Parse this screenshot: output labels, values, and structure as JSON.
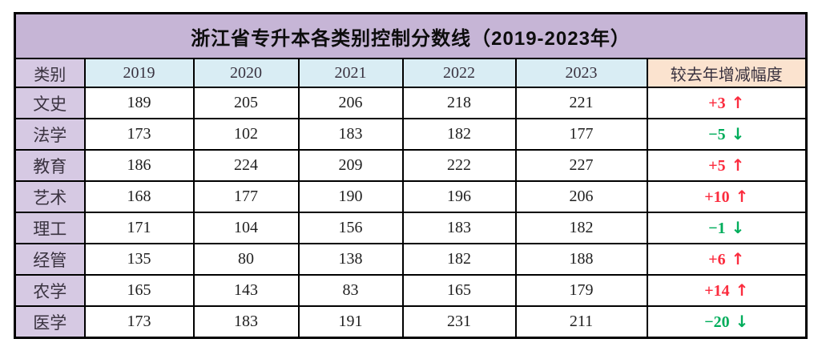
{
  "chart_data": {
    "type": "table",
    "title": "浙江省专升本各类别控制分数线（2019-2023年）",
    "columns": [
      "类别",
      "2019",
      "2020",
      "2021",
      "2022",
      "2023",
      "较去年增减幅度"
    ],
    "rows": [
      {
        "label": "文史",
        "scores": [
          189,
          205,
          206,
          218,
          221
        ],
        "change": "+3",
        "direction": "up"
      },
      {
        "label": "法学",
        "scores": [
          173,
          102,
          183,
          182,
          177
        ],
        "change": "−5",
        "direction": "down"
      },
      {
        "label": "教育",
        "scores": [
          186,
          224,
          209,
          222,
          227
        ],
        "change": "+5",
        "direction": "up"
      },
      {
        "label": "艺术",
        "scores": [
          168,
          177,
          190,
          196,
          206
        ],
        "change": "+10",
        "direction": "up"
      },
      {
        "label": "理工",
        "scores": [
          171,
          104,
          156,
          183,
          182
        ],
        "change": "−1",
        "direction": "down"
      },
      {
        "label": "经管",
        "scores": [
          135,
          80,
          138,
          182,
          188
        ],
        "change": "+6",
        "direction": "up"
      },
      {
        "label": "农学",
        "scores": [
          165,
          143,
          83,
          165,
          179
        ],
        "change": "+14",
        "direction": "up"
      },
      {
        "label": "医学",
        "scores": [
          173,
          183,
          191,
          231,
          211
        ],
        "change": "−20",
        "direction": "down"
      }
    ]
  },
  "icons": {
    "up_arrow": "↑",
    "down_arrow": "↓"
  },
  "colors": {
    "title_background": "#c6b5d6",
    "category_background": "#d6c9e3",
    "year_header_background": "#d9edf4",
    "change_header_background": "#fbe3cf",
    "increase_red": "#fb2c3e",
    "decrease_green": "#00ad5b",
    "border_black": "#000000"
  }
}
